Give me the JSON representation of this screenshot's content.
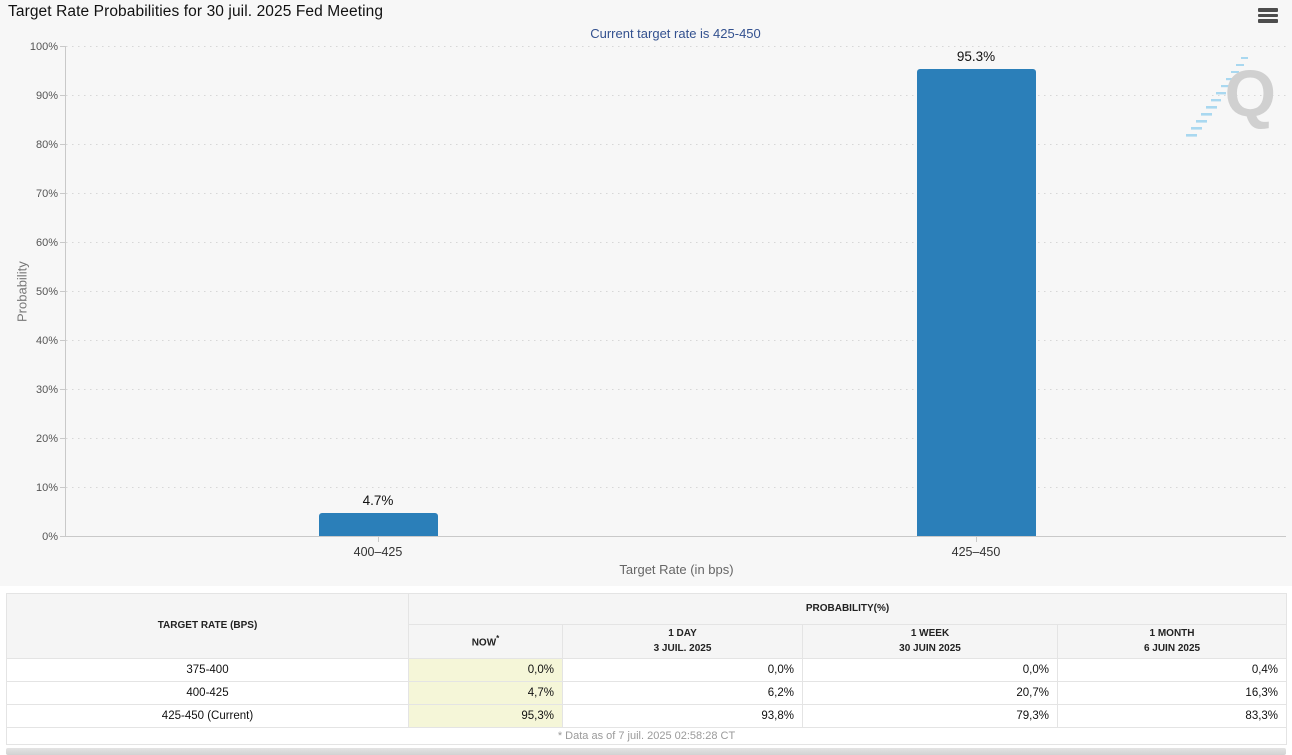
{
  "header": {
    "title": "Target Rate Probabilities for 30 juil. 2025 Fed Meeting"
  },
  "chart_data": {
    "type": "bar",
    "title": "Current target rate is 425-450",
    "categories": [
      "400–425",
      "425–450"
    ],
    "values": [
      4.7,
      95.3
    ],
    "value_labels": [
      "4.7%",
      "95.3%"
    ],
    "xlabel": "Target Rate (in bps)",
    "ylabel": "Probability",
    "ylim": [
      0,
      100
    ],
    "ytick_labels": [
      "0%",
      "10%",
      "20%",
      "30%",
      "40%",
      "50%",
      "60%",
      "70%",
      "80%",
      "90%",
      "100%"
    ],
    "grid": "dotted-horizontal",
    "legend": "none",
    "bar_color": "#2b7fb9",
    "watermark_letter": "Q"
  },
  "table": {
    "rate_header": "TARGET RATE (BPS)",
    "group_header": "PROBABILITY(%)",
    "columns": [
      {
        "label": "NOW",
        "sup": "*",
        "sub": ""
      },
      {
        "label": "1 DAY",
        "sub": "3 JUIL. 2025"
      },
      {
        "label": "1 WEEK",
        "sub": "30 JUIN 2025"
      },
      {
        "label": "1 MONTH",
        "sub": "6 JUIN 2025"
      }
    ],
    "rows": [
      {
        "rate": "375-400",
        "now": "0,0%",
        "day": "0,0%",
        "week": "0,0%",
        "month": "0,4%"
      },
      {
        "rate": "400-425",
        "now": "4,7%",
        "day": "6,2%",
        "week": "20,7%",
        "month": "16,3%"
      },
      {
        "rate": "425-450 (Current)",
        "now": "95,3%",
        "day": "93,8%",
        "week": "79,3%",
        "month": "83,3%"
      }
    ],
    "footnote": "* Data as of 7 juil. 2025 02:58:28 CT"
  },
  "colors": {
    "bar": "#2b7fb9",
    "panel_background": "#f7f7f7",
    "subtitle_text": "#33518f",
    "now_column_highlight": "#f5f6d8",
    "watermark_gray": "#d0d0d0",
    "watermark_blue": "#a9d8f0"
  }
}
